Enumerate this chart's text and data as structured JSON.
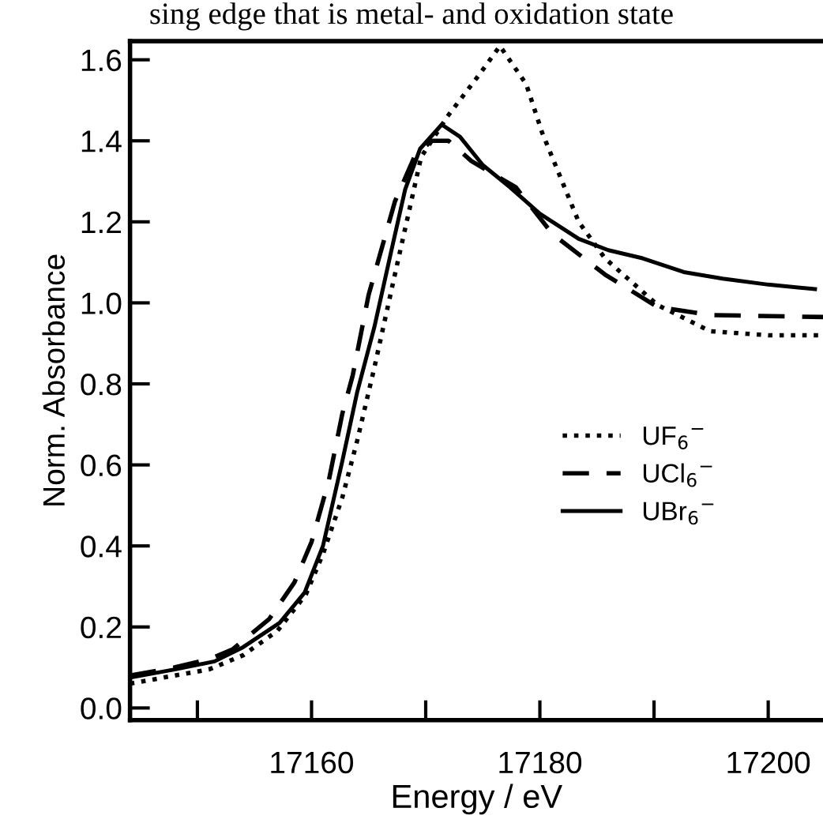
{
  "chart_data": {
    "type": "line",
    "xlabel": "Energy / eV",
    "ylabel": "Norm. Absorbance",
    "annotations": [
      "sing edge that is metal- and oxidation state"
    ],
    "xlim": [
      17144.1,
      17204.8
    ],
    "ylim": [
      -0.03,
      1.646
    ],
    "xticks": [
      {
        "value": 17150,
        "label": null
      },
      17160,
      {
        "value": 17170,
        "label": null
      },
      17180,
      {
        "value": 17190,
        "label": null
      },
      17200
    ],
    "yticks": [
      {
        "value": 0,
        "label": "0.0"
      },
      0.2,
      0.4,
      0.6,
      0.8,
      {
        "value": 1,
        "label": "1.0"
      },
      1.2,
      1.4,
      1.6
    ],
    "grid": false,
    "legend": "right",
    "marker": "none",
    "series": [
      {
        "name": "UF$_{6}$$^{−}$",
        "color": "#000000",
        "line_style": "dotted",
        "x": [
          17144.1,
          17148,
          17151,
          17154,
          17157,
          17159.5,
          17161,
          17162.7,
          17164,
          17165.5,
          17167.3,
          17169.6,
          17171.9,
          17174.6,
          17176.5,
          17178.8,
          17180.2,
          17183.4,
          17185.7,
          17190.3,
          17194.9,
          17200,
          17204.8
        ],
        "values": [
          0.06,
          0.08,
          0.095,
          0.13,
          0.19,
          0.28,
          0.38,
          0.52,
          0.66,
          0.84,
          1.07,
          1.36,
          1.46,
          1.56,
          1.634,
          1.54,
          1.42,
          1.2,
          1.11,
          0.995,
          0.93,
          0.92,
          0.92
        ]
      },
      {
        "name": "UCl$_{6}$$^{−}$",
        "color": "#000000",
        "line_style": "dashed",
        "x": [
          17144.1,
          17148,
          17151,
          17153.1,
          17156.3,
          17158.5,
          17160,
          17161.5,
          17162.7,
          17163.6,
          17165,
          17167.3,
          17169,
          17170.5,
          17172,
          17174,
          17177.9,
          17181.1,
          17185.7,
          17190.3,
          17194.9,
          17204.8
        ],
        "values": [
          0.08,
          0.1,
          0.12,
          0.145,
          0.22,
          0.31,
          0.41,
          0.56,
          0.727,
          0.82,
          1.02,
          1.25,
          1.36,
          1.4,
          1.4,
          1.35,
          1.285,
          1.17,
          1.07,
          0.99,
          0.97,
          0.965
        ]
      },
      {
        "name": "UBr$_{6}$$^{−}$",
        "color": "#000000",
        "line_style": "solid",
        "x": [
          17144.1,
          17148,
          17151.5,
          17154,
          17157.2,
          17159.4,
          17161,
          17162.7,
          17164,
          17165.5,
          17167,
          17168.2,
          17169.5,
          17171.4,
          17173,
          17175,
          17177.4,
          17180,
          17183.4,
          17186,
          17189,
          17192.6,
          17196,
          17200,
          17204.1
        ],
        "values": [
          0.075,
          0.095,
          0.115,
          0.15,
          0.21,
          0.285,
          0.4,
          0.61,
          0.78,
          0.94,
          1.13,
          1.28,
          1.38,
          1.44,
          1.41,
          1.34,
          1.285,
          1.22,
          1.158,
          1.13,
          1.11,
          1.076,
          1.06,
          1.045,
          1.034
        ]
      }
    ]
  }
}
